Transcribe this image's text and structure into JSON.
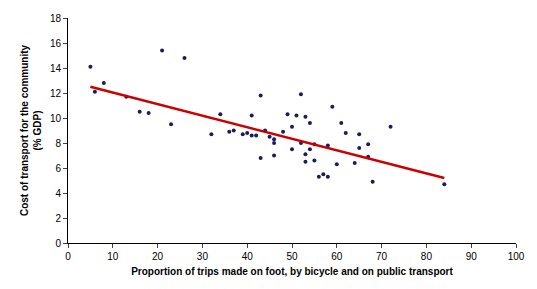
{
  "chart_data": {
    "type": "scatter",
    "xlabel": "Proportion of trips made on foot, by bicycle and on public transport",
    "ylabel": [
      "Cost of transport for the community",
      "(% GDP)"
    ],
    "xlim": [
      0,
      100
    ],
    "xticks": [
      0,
      10,
      20,
      30,
      40,
      50,
      60,
      70,
      80,
      90,
      100
    ],
    "ylim": [
      0,
      18
    ],
    "yticks": [
      0,
      2,
      4,
      6,
      8,
      10,
      12,
      14,
      16,
      18
    ],
    "grid": false,
    "series": [
      {
        "type": "scatter",
        "color": "#1c1c5c",
        "marker": "circle",
        "x": [
          5,
          6,
          8,
          13,
          16,
          18,
          21,
          23,
          26,
          32,
          34,
          36,
          37,
          39,
          40,
          41,
          41,
          42,
          43,
          43,
          44,
          45,
          46,
          46,
          46,
          48,
          49,
          50,
          50,
          51,
          52,
          52,
          53,
          53,
          53,
          54,
          54,
          55,
          55,
          56,
          57,
          58,
          58,
          59,
          60,
          61,
          62,
          64,
          65,
          65,
          67,
          67,
          68,
          72,
          84
        ],
        "values": [
          14.1,
          12.1,
          12.8,
          11.7,
          10.5,
          10.4,
          15.4,
          9.5,
          14.8,
          8.7,
          10.3,
          8.9,
          9,
          8.7,
          8.8,
          8.6,
          10.2,
          8.6,
          11.8,
          6.8,
          9,
          8.5,
          8.3,
          8,
          7,
          8.9,
          10.3,
          9.3,
          7.5,
          10.2,
          11.9,
          8,
          10.1,
          7.1,
          6.5,
          7.5,
          9.6,
          7.9,
          6.6,
          5.3,
          5.5,
          5.3,
          7.8,
          10.9,
          6.3,
          9.6,
          8.8,
          6.4,
          8.7,
          7.6,
          6.9,
          7.9,
          4.9,
          9.3,
          4.7
        ]
      },
      {
        "type": "line",
        "color": "#cc0000",
        "line_style": "solid",
        "x": [
          5,
          84
        ],
        "values": [
          12.5,
          5.2
        ]
      }
    ]
  }
}
